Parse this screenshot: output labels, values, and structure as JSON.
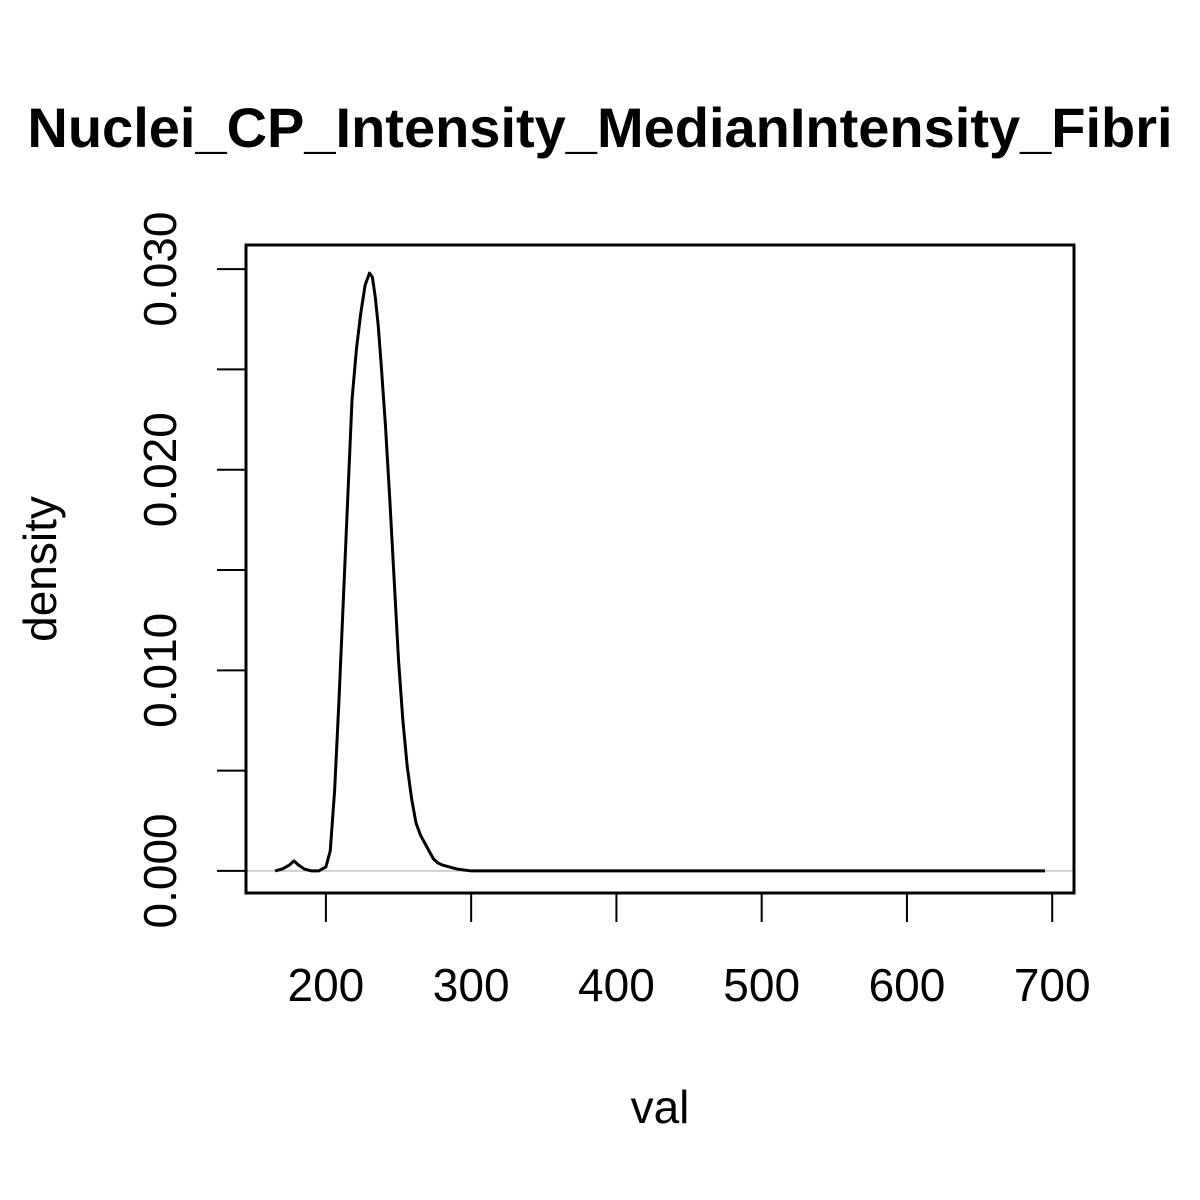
{
  "chart_data": {
    "type": "line",
    "title": "Nuclei_CP_Intensity_MedianIntensity_Fibri",
    "xlabel": "val",
    "ylabel": "density",
    "xlim": [
      145,
      715
    ],
    "ylim": [
      -0.0011,
      0.0312
    ],
    "x_ticks": [
      200,
      300,
      400,
      500,
      600,
      700
    ],
    "x_tick_labels": [
      "200",
      "300",
      "400",
      "500",
      "600",
      "700"
    ],
    "y_ticks": [
      0.0,
      0.005,
      0.01,
      0.015,
      0.02,
      0.025,
      0.03
    ],
    "y_tick_labels": [
      "0.000",
      "",
      "0.010",
      "",
      "0.020",
      "",
      "0.030"
    ],
    "grid": false,
    "baseline": 0,
    "colors": {
      "line": "#000000",
      "baseline": "#d0d0d0",
      "frame": "#000000"
    },
    "series": [
      {
        "x": [
          165,
          170,
          175,
          178,
          181,
          185,
          190,
          195,
          200,
          203,
          206,
          209,
          212,
          215,
          218,
          221,
          224,
          227,
          230,
          232,
          234,
          236,
          238,
          241,
          244,
          247,
          250,
          253,
          256,
          259,
          262,
          265,
          268,
          271,
          274,
          277,
          280,
          285,
          290,
          295,
          300,
          310,
          330,
          360,
          400,
          450,
          500,
          550,
          600,
          650,
          695
        ],
        "y": [
          0.0,
          0.0001,
          0.0003,
          0.0005,
          0.0003,
          0.0001,
          0.0,
          0.0,
          0.0002,
          0.001,
          0.004,
          0.0085,
          0.0135,
          0.0185,
          0.0235,
          0.026,
          0.0278,
          0.0292,
          0.0298,
          0.0296,
          0.0286,
          0.0272,
          0.0253,
          0.0222,
          0.0185,
          0.0145,
          0.0105,
          0.0075,
          0.0052,
          0.0036,
          0.0024,
          0.0018,
          0.0014,
          0.001,
          0.0006,
          0.0004,
          0.0003,
          0.0002,
          0.0001,
          5e-05,
          0.0,
          0.0,
          0.0,
          0.0,
          0.0,
          0.0,
          0.0,
          0.0,
          0.0,
          0.0,
          0.0
        ]
      }
    ]
  }
}
